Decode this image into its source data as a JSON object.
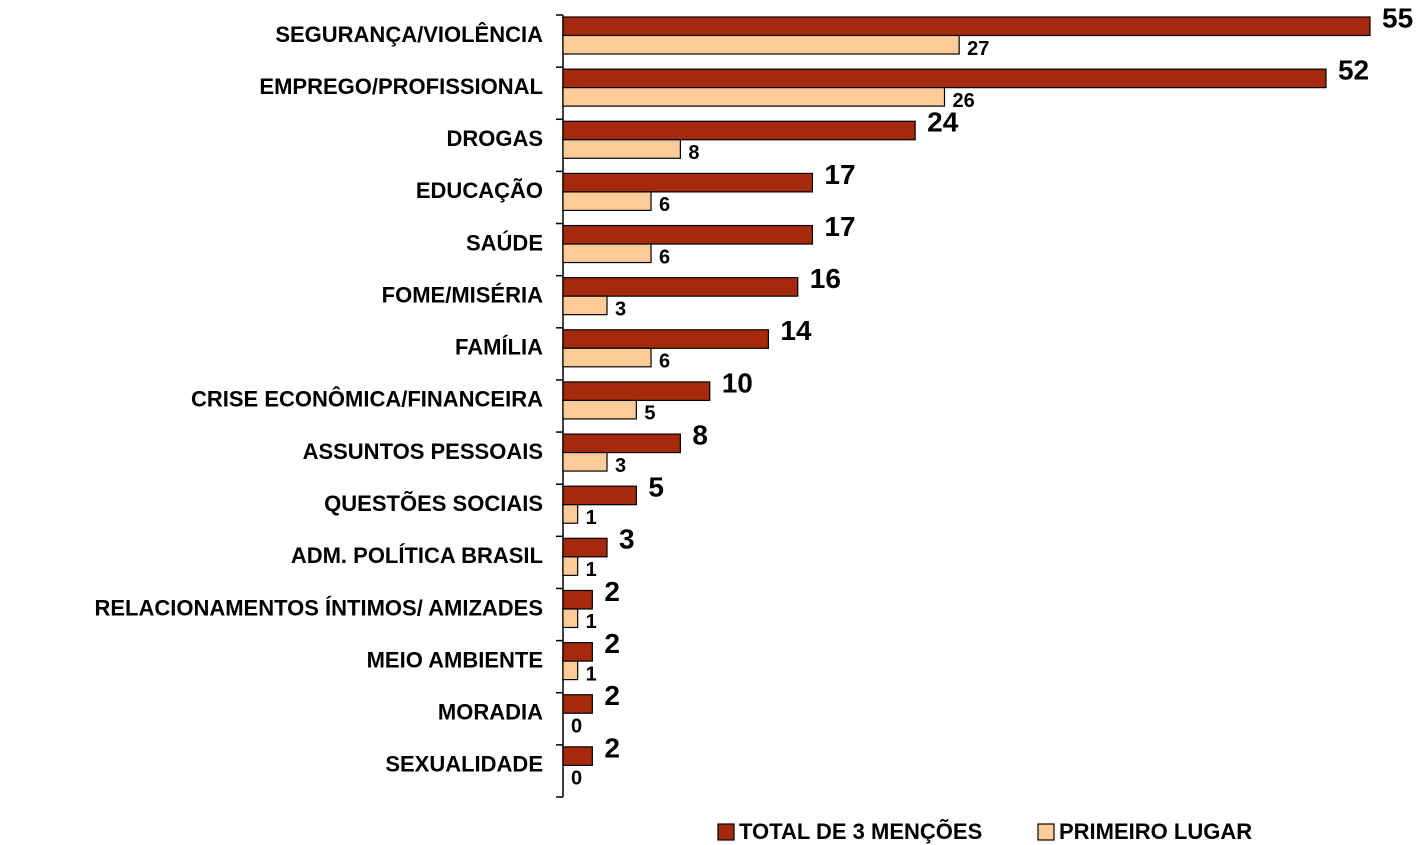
{
  "chart_data": {
    "type": "bar",
    "orientation": "horizontal",
    "categories": [
      "SEGURANÇA/VIOLÊNCIA",
      "EMPREGO/PROFISSIONAL",
      "DROGAS",
      "EDUCAÇÃO",
      "SAÚDE",
      "FOME/MISÉRIA",
      "FAMÍLIA",
      "CRISE ECONÔMICA/FINANCEIRA",
      "ASSUNTOS PESSOAIS",
      "QUESTÕES SOCIAIS",
      "ADM. POLÍTICA BRASIL",
      "RELACIONAMENTOS ÍNTIMOS/ AMIZADES",
      "MEIO AMBIENTE",
      "MORADIA",
      "SEXUALIDADE"
    ],
    "series": [
      {
        "name": "TOTAL DE 3 MENÇÕES",
        "color": "#a52a0d",
        "values": [
          55,
          52,
          24,
          17,
          17,
          16,
          14,
          10,
          8,
          5,
          3,
          2,
          2,
          2,
          2
        ]
      },
      {
        "name": "PRIMEIRO LUGAR",
        "color": "#ffcc99",
        "values": [
          27,
          26,
          8,
          6,
          6,
          3,
          6,
          5,
          3,
          1,
          1,
          1,
          1,
          0,
          0
        ]
      }
    ],
    "xlim": [
      0,
      55
    ],
    "legend": "bottom"
  }
}
